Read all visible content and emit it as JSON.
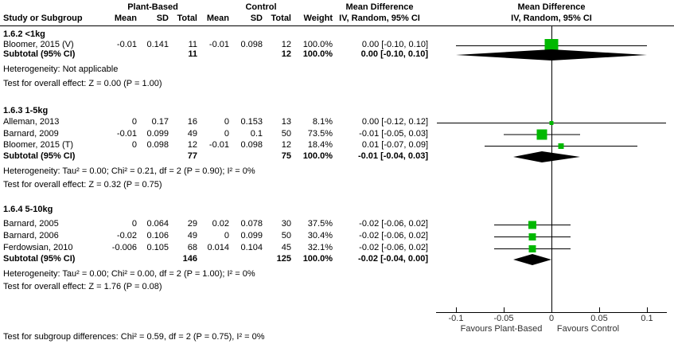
{
  "colors": {
    "marker_green": "#00b800",
    "line_black": "#000000",
    "axis_text": "#303030"
  },
  "header": {
    "group1": "Plant-Based",
    "group2": "Control",
    "study": "Study or Subgroup",
    "mean": "Mean",
    "sd": "SD",
    "total": "Total",
    "weight": "Weight",
    "md_line1": "Mean Difference",
    "md_line2": "IV, Random, 95% CI"
  },
  "axis": {
    "left_label": "Favours Plant-Based",
    "right_label": "Favours Control"
  },
  "footer": "Test for subgroup differences: Chi² = 0.59, df = 2 (P = 0.75), I² = 0%",
  "chart_data": {
    "type": "forest",
    "effect_measure": "Mean Difference, IV, Random, 95% CI",
    "x_axis": {
      "min": -0.1,
      "max": 0.1,
      "ticks": [
        -0.1,
        -0.05,
        0,
        0.05,
        0.1
      ],
      "tick_labels": [
        "-0.1",
        "-0.05",
        "0",
        "0.05",
        "0.1"
      ]
    },
    "sections": [
      {
        "title": "1.6.2 <1kg",
        "studies": [
          {
            "name": "Bloomer, 2015 (V)",
            "mean1": "-0.01",
            "sd1": "0.141",
            "total1": "11",
            "mean2": "-0.01",
            "sd2": "0.098",
            "total2": "12",
            "weight": "100.0%",
            "ci_text": "0.00 [-0.10, 0.10]",
            "effect": 0,
            "ci_low": -0.1,
            "ci_high": 0.1,
            "marker_size": 17
          }
        ],
        "subtotal": {
          "label": "Subtotal (95% CI)",
          "total1": "11",
          "total2": "12",
          "weight": "100.0%",
          "ci_text": "0.00 [-0.10, 0.10]",
          "effect": 0,
          "ci_low": -0.1,
          "ci_high": 0.1
        },
        "heterogeneity": "Heterogeneity: Not applicable",
        "overall_effect": "Test for overall effect: Z = 0.00 (P = 1.00)"
      },
      {
        "title": "1.6.3 1-5kg",
        "studies": [
          {
            "name": "Alleman, 2013",
            "mean1": "0",
            "sd1": "0.17",
            "total1": "16",
            "mean2": "0",
            "sd2": "0.153",
            "total2": "13",
            "weight": "8.1%",
            "ci_text": "0.00 [-0.12, 0.12]",
            "effect": 0,
            "ci_low": -0.12,
            "ci_high": 0.12,
            "marker_size": 5
          },
          {
            "name": "Barnard, 2009",
            "mean1": "-0.01",
            "sd1": "0.099",
            "total1": "49",
            "mean2": "0",
            "sd2": "0.1",
            "total2": "50",
            "weight": "73.5%",
            "ci_text": "-0.01 [-0.05, 0.03]",
            "effect": -0.01,
            "ci_low": -0.05,
            "ci_high": 0.03,
            "marker_size": 13
          },
          {
            "name": "Bloomer, 2015 (T)",
            "mean1": "0",
            "sd1": "0.098",
            "total1": "12",
            "mean2": "-0.01",
            "sd2": "0.098",
            "total2": "12",
            "weight": "18.4%",
            "ci_text": "0.01 [-0.07, 0.09]",
            "effect": 0.01,
            "ci_low": -0.07,
            "ci_high": 0.09,
            "marker_size": 7
          }
        ],
        "subtotal": {
          "label": "Subtotal (95% CI)",
          "total1": "77",
          "total2": "75",
          "weight": "100.0%",
          "ci_text": "-0.01 [-0.04, 0.03]",
          "effect": -0.01,
          "ci_low": -0.04,
          "ci_high": 0.03
        },
        "heterogeneity": "Heterogeneity: Tau² = 0.00; Chi² = 0.21, df = 2 (P = 0.90); I² = 0%",
        "overall_effect": "Test for overall effect: Z = 0.32 (P = 0.75)"
      },
      {
        "title": "1.6.4 5-10kg",
        "studies": [
          {
            "name": "Barnard, 2005",
            "mean1": "0",
            "sd1": "0.064",
            "total1": "29",
            "mean2": "0.02",
            "sd2": "0.078",
            "total2": "30",
            "weight": "37.5%",
            "ci_text": "-0.02 [-0.06, 0.02]",
            "effect": -0.02,
            "ci_low": -0.06,
            "ci_high": 0.02,
            "marker_size": 10
          },
          {
            "name": "Barnard, 2006",
            "mean1": "-0.02",
            "sd1": "0.106",
            "total1": "49",
            "mean2": "0",
            "sd2": "0.099",
            "total2": "50",
            "weight": "30.4%",
            "ci_text": "-0.02 [-0.06, 0.02]",
            "effect": -0.02,
            "ci_low": -0.06,
            "ci_high": 0.02,
            "marker_size": 9
          },
          {
            "name": "Ferdowsian, 2010",
            "mean1": "-0.006",
            "sd1": "0.105",
            "total1": "68",
            "mean2": "0.014",
            "sd2": "0.104",
            "total2": "45",
            "weight": "32.1%",
            "ci_text": "-0.02 [-0.06, 0.02]",
            "effect": -0.02,
            "ci_low": -0.06,
            "ci_high": 0.02,
            "marker_size": 9
          }
        ],
        "subtotal": {
          "label": "Subtotal (95% CI)",
          "total1": "146",
          "total2": "125",
          "weight": "100.0%",
          "ci_text": "-0.02 [-0.04, 0.00]",
          "effect": -0.02,
          "ci_low": -0.04,
          "ci_high": 0
        },
        "heterogeneity": "Heterogeneity: Tau² = 0.00; Chi² = 0.00, df = 2 (P = 1.00); I² = 0%",
        "overall_effect": "Test for overall effect: Z = 1.76 (P = 0.08)"
      }
    ]
  }
}
